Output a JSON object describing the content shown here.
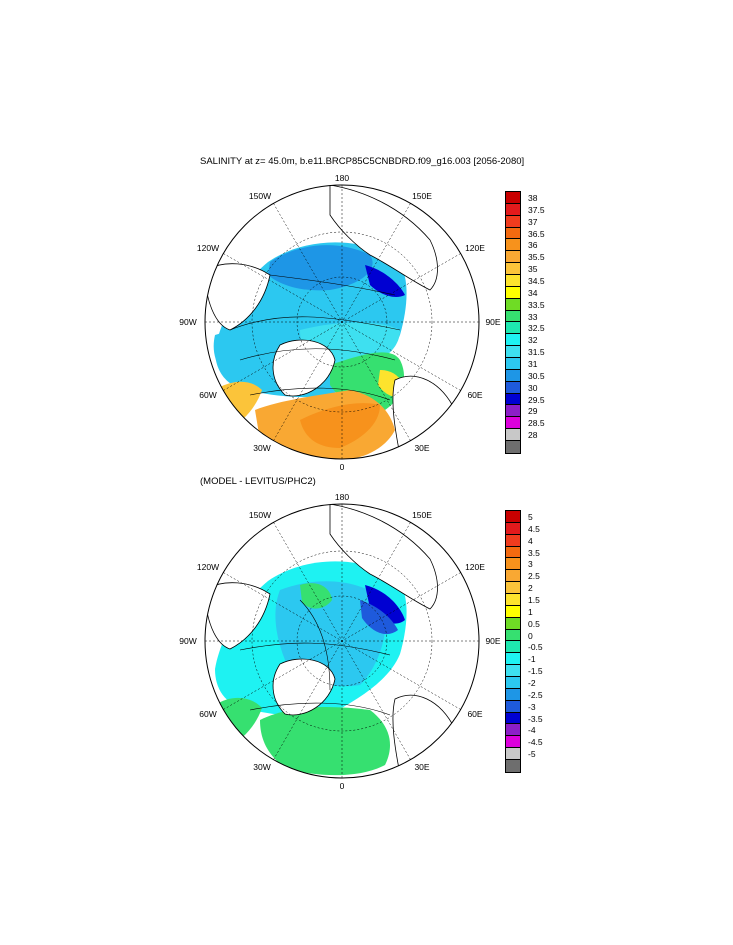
{
  "panel1": {
    "title": "SALINITY at z=  45.0m, b.e11.BRCP85C5CNBDRD.f09_g16.003 [2056-2080]",
    "colorbar": {
      "labels": [
        "38",
        "37.5",
        "37",
        "36.5",
        "36",
        "35.5",
        "35",
        "34.5",
        "34",
        "33.5",
        "33",
        "32.5",
        "32",
        "31.5",
        "31",
        "30.5",
        "30",
        "29.5",
        "29",
        "28.5",
        "28"
      ]
    }
  },
  "panel2": {
    "title": "(MODEL - LEVITUS/PHC2)",
    "colorbar": {
      "labels": [
        "5",
        "4.5",
        "4",
        "3.5",
        "3",
        "2.5",
        "2",
        "1.5",
        "1",
        "0.5",
        "0",
        "-0.5",
        "-1",
        "-1.5",
        "-2",
        "-2.5",
        "-3",
        "-3.5",
        "-4",
        "-4.5",
        "-5"
      ]
    }
  },
  "longitude_labels": {
    "top": "180",
    "bottom": "0",
    "left": "90W",
    "right": "90E",
    "upper_left_1": "150W",
    "upper_left_2": "120W",
    "upper_right_1": "150E",
    "upper_right_2": "120E",
    "lower_left_1": "60W",
    "lower_left_2": "30W",
    "lower_right_1": "60E",
    "lower_right_2": "30E"
  },
  "colors": {
    "scale": [
      "#c80000",
      "#e31a1c",
      "#f03c1e",
      "#f36a10",
      "#f7921c",
      "#f9a833",
      "#fbc43a",
      "#fde32d",
      "#ffff00",
      "#6fdc25",
      "#36e070",
      "#1ee8b0",
      "#1ef2f2",
      "#3ee0f0",
      "#2cc8f0",
      "#1e96e6",
      "#1e5adc",
      "#0000d2",
      "#8c1ec8",
      "#dc00dc",
      "#c8c8c8",
      "#6e6e6e"
    ],
    "land": "#ffffff",
    "coast": "#000000"
  }
}
